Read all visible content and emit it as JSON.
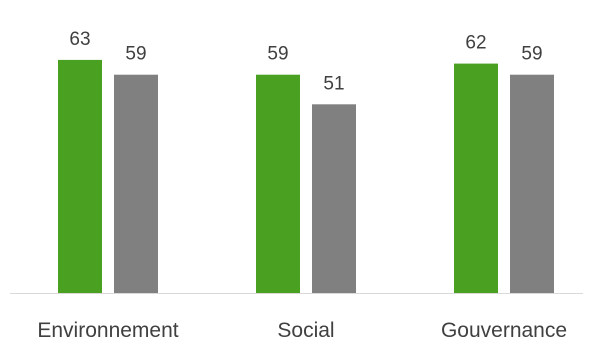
{
  "chart_data": {
    "type": "bar",
    "title": "",
    "xlabel": "",
    "ylabel": "",
    "categories": [
      "Environnement",
      "Social",
      "Gouvernance"
    ],
    "series": [
      {
        "values": [
          63,
          59,
          62
        ],
        "color": "#4aa020"
      },
      {
        "values": [
          59,
          51,
          59
        ],
        "color": "#808080"
      }
    ],
    "ylim": [
      0,
      70
    ],
    "grid": false,
    "legend": "none",
    "data_labels": true,
    "axis_color": "#d9d9d9"
  }
}
